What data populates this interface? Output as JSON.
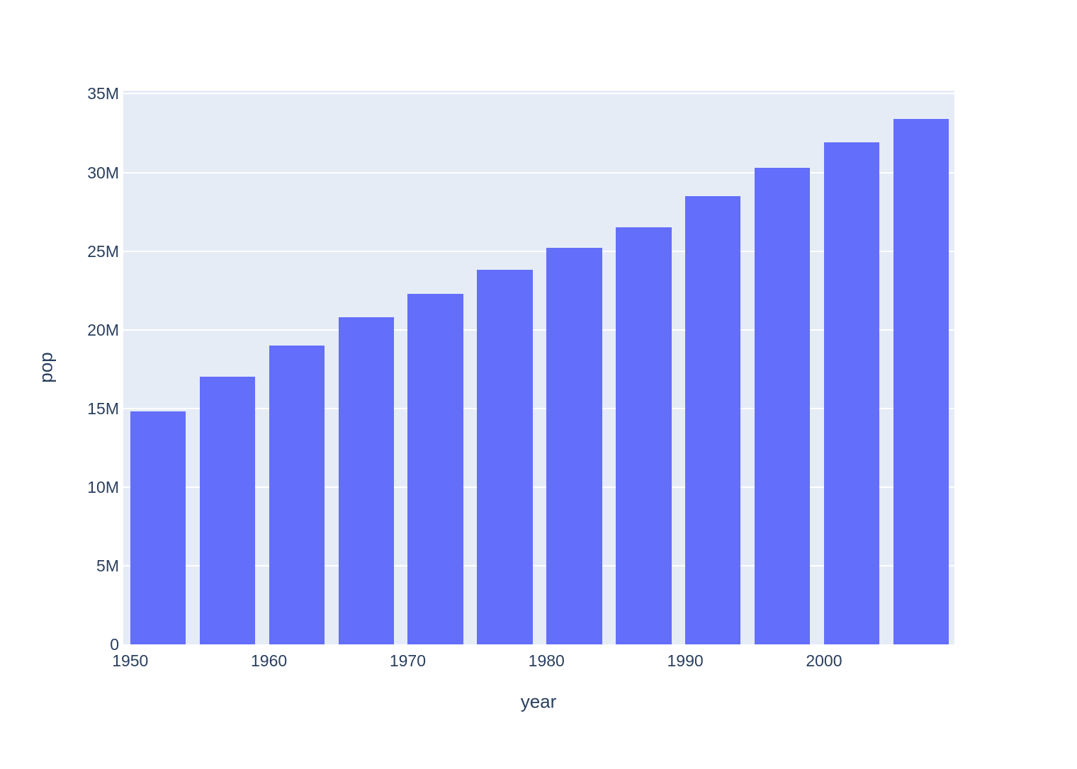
{
  "chart_data": {
    "type": "bar",
    "title": "",
    "xlabel": "year",
    "ylabel": "pop",
    "x": [
      1952,
      1957,
      1962,
      1967,
      1972,
      1977,
      1982,
      1987,
      1992,
      1997,
      2002,
      2007
    ],
    "values_in_millions": [
      14.8,
      17.0,
      19.0,
      20.8,
      22.3,
      23.8,
      25.2,
      26.5,
      28.5,
      30.3,
      31.9,
      33.4
    ],
    "bar_width_years": 4,
    "xlim": [
      1949.5,
      2009.4
    ],
    "ylim": [
      0,
      35.2
    ],
    "yticks": [
      {
        "value": 0,
        "label": "0"
      },
      {
        "value": 5,
        "label": "5M"
      },
      {
        "value": 10,
        "label": "10M"
      },
      {
        "value": 15,
        "label": "15M"
      },
      {
        "value": 20,
        "label": "20M"
      },
      {
        "value": 25,
        "label": "25M"
      },
      {
        "value": 30,
        "label": "30M"
      },
      {
        "value": 35,
        "label": "35M"
      }
    ],
    "xticks": [
      {
        "value": 1950,
        "label": "1950"
      },
      {
        "value": 1960,
        "label": "1960"
      },
      {
        "value": 1970,
        "label": "1970"
      },
      {
        "value": 1980,
        "label": "1980"
      },
      {
        "value": 1990,
        "label": "1990"
      },
      {
        "value": 2000,
        "label": "2000"
      }
    ],
    "legend": null,
    "grid": "horizontal-only",
    "colors": {
      "bar": "#636efa",
      "plot_background": "#e5ecf6",
      "gridline": "#ffffff",
      "text": "#2a3f5f",
      "page_background": "#ffffff"
    }
  }
}
